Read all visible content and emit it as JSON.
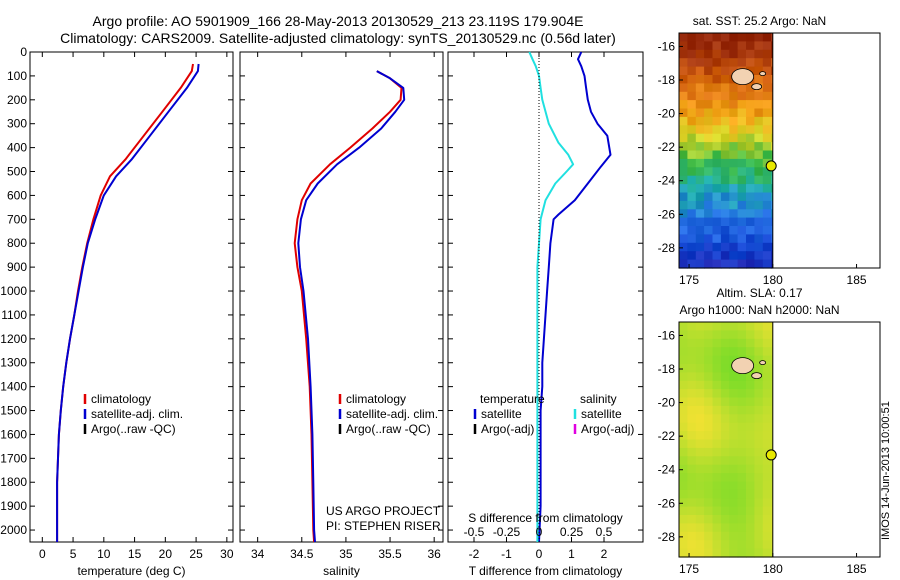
{
  "header": {
    "line1": "Argo profile: AO 5901909_166 28-May-2013 20130529_213 23.119S 179.904E",
    "line2": "Climatology: CARS2009. Satellite-adjusted climatology: synTS_20130529.nc (0.56d later)"
  },
  "side_stamp": "IMOS 14-Jun-2013 10:00:51",
  "colors": {
    "red": "#e00000",
    "blue": "#0000d0",
    "cyan": "#20e0e0",
    "magenta": "#e000e0",
    "black": "#000000"
  },
  "chart_data": [
    {
      "type": "line",
      "xlabel": "temperature (deg C)",
      "ylabel": "",
      "xlim": [
        -2,
        31
      ],
      "ylim": [
        2050,
        0
      ],
      "xticks": [
        0,
        5,
        10,
        15,
        20,
        25,
        30
      ],
      "yticks": [
        0,
        100,
        200,
        300,
        400,
        500,
        600,
        700,
        800,
        900,
        1000,
        1100,
        1200,
        1300,
        1400,
        1500,
        1600,
        1700,
        1800,
        1900,
        2000
      ],
      "legend": [
        "climatology",
        "satellite-adj. clim.",
        "Argo(..raw -QC)"
      ],
      "legend_location": "lower-center",
      "series": [
        {
          "name": "climatology",
          "color": "red",
          "x": [
            24.5,
            24.3,
            22.5,
            19.5,
            16.5,
            13.5,
            11.0,
            9.5,
            8.3,
            7.3,
            6.5,
            5.8,
            5.2,
            4.5,
            3.9,
            3.4,
            3.0,
            2.7,
            2.4,
            2.4
          ],
          "y": [
            50,
            80,
            150,
            250,
            350,
            450,
            520,
            600,
            700,
            800,
            900,
            1000,
            1100,
            1200,
            1300,
            1400,
            1500,
            1600,
            1800,
            2050
          ]
        },
        {
          "name": "satellite-adj. clim.",
          "color": "blue",
          "x": [
            25.4,
            25.3,
            23.5,
            20.5,
            17.5,
            14.5,
            12.0,
            10.0,
            8.6,
            7.4,
            6.6,
            5.9,
            5.2,
            4.5,
            3.9,
            3.4,
            3.0,
            2.7,
            2.4,
            2.4
          ],
          "y": [
            50,
            80,
            150,
            250,
            350,
            450,
            520,
            600,
            700,
            800,
            900,
            1000,
            1100,
            1200,
            1300,
            1400,
            1500,
            1600,
            1800,
            2050
          ]
        }
      ]
    },
    {
      "type": "line",
      "xlabel": "salinity",
      "ylabel": "",
      "xlim": [
        33.8,
        36.1
      ],
      "ylim": [
        2050,
        0
      ],
      "xticks": [
        34,
        34.5,
        35,
        35.5,
        36
      ],
      "legend": [
        "climatology",
        "satellite-adj. clim.",
        "Argo(..raw -QC)"
      ],
      "legend_location": "lower-right",
      "annotation": [
        "US ARGO PROJECT",
        "PI: STEPHEN RISER"
      ],
      "series": [
        {
          "name": "climatology",
          "color": "red",
          "x": [
            35.35,
            35.5,
            35.63,
            35.62,
            35.5,
            35.3,
            35.05,
            34.82,
            34.6,
            34.5,
            34.45,
            34.42,
            34.45,
            34.5,
            34.55,
            34.59,
            34.61,
            34.62,
            34.63,
            34.64
          ],
          "y": [
            80,
            110,
            150,
            200,
            250,
            320,
            400,
            470,
            550,
            620,
            700,
            800,
            900,
            1000,
            1200,
            1400,
            1600,
            1800,
            2000,
            2050
          ]
        },
        {
          "name": "satellite-adj. clim.",
          "color": "blue",
          "x": [
            35.35,
            35.5,
            35.65,
            35.66,
            35.56,
            35.4,
            35.15,
            34.9,
            34.68,
            34.55,
            34.49,
            34.46,
            34.48,
            34.52,
            34.57,
            34.6,
            34.62,
            34.63,
            34.64,
            34.65
          ],
          "y": [
            80,
            110,
            150,
            200,
            250,
            320,
            400,
            470,
            550,
            620,
            700,
            800,
            900,
            1000,
            1200,
            1400,
            1600,
            1800,
            2000,
            2050
          ]
        }
      ]
    },
    {
      "type": "line",
      "xlabel": "T difference from climatology",
      "xlabel_top": "S difference from climatology",
      "ylabel": "",
      "xlim": [
        -2.8,
        3.2
      ],
      "ylim": [
        2050,
        0
      ],
      "xticks": [
        -2,
        -1,
        0,
        1,
        2
      ],
      "top_xtick_labels": [
        "-0.5",
        "-0.25",
        "0",
        "0.25",
        "0.5"
      ],
      "top_xtick_positions": [
        -2,
        -1,
        0,
        1,
        2
      ],
      "legend_group_titles": [
        "temperature",
        "salinity"
      ],
      "legend": [
        "satellite",
        "Argo(-adj)",
        "satellite",
        "Argo(-adj)"
      ],
      "legend_location": "lower-center",
      "series": [
        {
          "name": "temperature satellite",
          "color": "blue",
          "x": [
            1.3,
            1.2,
            1.3,
            1.4,
            1.45,
            1.5,
            1.6,
            1.8,
            2.1,
            2.2,
            1.9,
            1.5,
            1.1,
            0.6,
            0.45,
            0.35,
            0.3,
            0.25,
            0.2,
            0.15,
            0.1,
            0.1,
            0.05,
            0.05,
            0.05,
            0.0
          ],
          "y": [
            0,
            30,
            60,
            100,
            150,
            200,
            250,
            300,
            350,
            430,
            480,
            550,
            620,
            680,
            700,
            800,
            900,
            1000,
            1100,
            1200,
            1300,
            1400,
            1500,
            1700,
            1900,
            2050
          ]
        },
        {
          "name": "salinity satellite",
          "color": "cyan",
          "x": [
            -0.3,
            -0.2,
            -0.1,
            0.0,
            0.05,
            0.1,
            0.3,
            0.6,
            0.9,
            1.05,
            0.85,
            0.5,
            0.2,
            0.05,
            0.0,
            -0.05,
            -0.05,
            -0.05,
            -0.05,
            -0.05,
            -0.05,
            -0.05,
            -0.05,
            -0.05
          ],
          "y": [
            0,
            30,
            60,
            100,
            150,
            200,
            300,
            380,
            430,
            470,
            500,
            550,
            620,
            700,
            800,
            900,
            1000,
            1100,
            1200,
            1300,
            1400,
            1600,
            1800,
            2050
          ]
        }
      ]
    },
    {
      "type": "heatmap",
      "title": "sat. SST: 25.2 Argo: NaN",
      "xlim": [
        174.4,
        186.4
      ],
      "ylim": [
        -29.2,
        -15.2
      ],
      "xticks": [
        175,
        180,
        185
      ],
      "yticks": [
        -16,
        -18,
        -20,
        -22,
        -24,
        -26,
        -28
      ],
      "data_extent_x": [
        174.4,
        180
      ],
      "marker": {
        "x": 179.904,
        "y": -23.119
      }
    },
    {
      "type": "heatmap",
      "title": "Altim. SLA: 0.17",
      "subtitle": "Argo h1000: NaN h2000: NaN",
      "xlim": [
        174.4,
        186.4
      ],
      "ylim": [
        -29.2,
        -15.2
      ],
      "xticks": [
        175,
        180,
        185
      ],
      "yticks": [
        -16,
        -18,
        -20,
        -22,
        -24,
        -26,
        -28
      ],
      "data_extent_x": [
        174.4,
        180
      ],
      "marker": {
        "x": 179.904,
        "y": -23.119
      }
    }
  ]
}
